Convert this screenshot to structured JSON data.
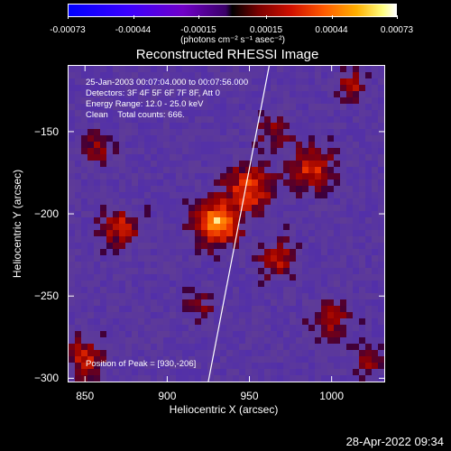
{
  "colorbar": {
    "ticks": [
      "-0.00073",
      "-0.00044",
      "-0.00015",
      "0.00015",
      "0.00044",
      "0.00073"
    ],
    "tick_values": [
      -0.00073,
      -0.00044,
      -0.00015,
      0.00015,
      0.00044,
      0.00073
    ],
    "unit": "(photons cm⁻² s⁻¹ asec⁻²)"
  },
  "info": {
    "time": "25-Jan-2003 00:07:04.000 to 00:07:56.000",
    "detectors": "Detectors: 3F 4F 5F 6F 7F 8F, Att 0",
    "energy": "Energy Range: 12.0 - 25.0 keV",
    "clean": "Clean    Total counts: 666.",
    "peak": "Position of Peak = [930,-206]"
  },
  "footer": {
    "date": "28-Apr-2022 09:34"
  },
  "chart_data": {
    "type": "heatmap",
    "title": "Reconstructed RHESSI Image",
    "xlabel": "Heliocentric X (arcsec)",
    "ylabel": "Heliocentric Y (arcsec)",
    "xlim": [
      840,
      1032
    ],
    "ylim": [
      -302,
      -110
    ],
    "x_ticks": [
      850,
      900,
      950,
      1000
    ],
    "y_ticks": [
      -150,
      -200,
      -250,
      -300
    ],
    "clim": [
      -0.00073,
      0.00073
    ],
    "limb_line": [
      [
        925,
        -302
      ],
      [
        962,
        -110
      ]
    ],
    "sources": [
      {
        "x": 930,
        "y": -206,
        "amp": 0.00073,
        "sigma": 9
      },
      {
        "x": 950,
        "y": -185,
        "amp": 0.0005,
        "sigma": 10
      },
      {
        "x": 988,
        "y": -172,
        "amp": 0.00045,
        "sigma": 9
      },
      {
        "x": 872,
        "y": -208,
        "amp": 0.0004,
        "sigma": 8
      },
      {
        "x": 968,
        "y": -228,
        "amp": 0.00035,
        "sigma": 8
      },
      {
        "x": 858,
        "y": -160,
        "amp": 0.0003,
        "sigma": 6
      },
      {
        "x": 1012,
        "y": -122,
        "amp": 0.00032,
        "sigma": 6
      },
      {
        "x": 850,
        "y": -288,
        "amp": 0.0004,
        "sigma": 8
      },
      {
        "x": 1000,
        "y": -265,
        "amp": 0.0003,
        "sigma": 8
      },
      {
        "x": 920,
        "y": -255,
        "amp": 0.00022,
        "sigma": 6
      },
      {
        "x": 965,
        "y": -150,
        "amp": 0.00026,
        "sigma": 7
      },
      {
        "x": 1022,
        "y": -290,
        "amp": 0.00025,
        "sigma": 6
      }
    ]
  }
}
